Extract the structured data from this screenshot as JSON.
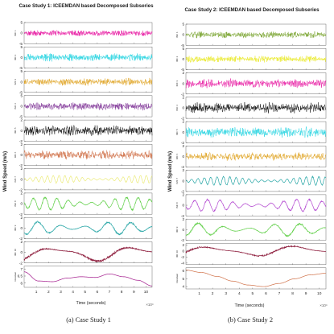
{
  "chart_data": [
    {
      "type": "line",
      "title": "Case Study 1: ICEEMDAN based Decomposed Subseries",
      "xlabel": "Time (seconds)",
      "ylabel": "Wind Speed (m/s)",
      "x_ticks": [
        "1",
        "2",
        "3",
        "4",
        "5",
        "6",
        "7",
        "8",
        "9",
        "10"
      ],
      "x_exponent": "×10⁴",
      "xlim": [
        0,
        105000
      ],
      "series": [
        {
          "name": "IMF 1",
          "color": "#e6109e",
          "y_ticks": [
            "5",
            "0",
            "-5"
          ],
          "ylim": [
            -5,
            5
          ],
          "freq": 260,
          "amp": 1.6
        },
        {
          "name": "IMF 2",
          "color": "#1fd2e0",
          "y_ticks": [
            "5",
            "0",
            "-5"
          ],
          "ylim": [
            -5,
            5
          ],
          "freq": 170,
          "amp": 1.7
        },
        {
          "name": "IMF 3",
          "color": "#dfa21e",
          "y_ticks": [
            "5",
            "0",
            "-5"
          ],
          "ylim": [
            -5,
            5
          ],
          "freq": 115,
          "amp": 1.6
        },
        {
          "name": "IMF 4",
          "color": "#7b2d93",
          "y_ticks": [
            "5",
            "0",
            "-5"
          ],
          "ylim": [
            -5,
            5
          ],
          "freq": 80,
          "amp": 1.8
        },
        {
          "name": "IMF 5",
          "color": "#000000",
          "y_ticks": [
            "2",
            "0",
            "-2"
          ],
          "ylim": [
            -2,
            2
          ],
          "freq": 55,
          "amp": 0.9
        },
        {
          "name": "IMF 6",
          "color": "#cf6e45",
          "y_ticks": [
            "2",
            "0",
            "-2"
          ],
          "ylim": [
            -2,
            2
          ],
          "freq": 36,
          "amp": 0.8
        },
        {
          "name": "IMF 7",
          "color": "#ecec7e",
          "y_ticks": [
            "2",
            "0",
            "-2"
          ],
          "ylim": [
            -2,
            2
          ],
          "freq": 22,
          "amp": 0.7
        },
        {
          "name": "IMF 8",
          "color": "#63d04b",
          "y_ticks": [
            "2",
            "0",
            "-2"
          ],
          "ylim": [
            -2,
            2
          ],
          "freq": 11,
          "amp": 1.2
        },
        {
          "name": "IMF 9",
          "color": "#2aa7a7",
          "y_ticks": [
            "2",
            "0",
            "-2"
          ],
          "ylim": [
            -2,
            2
          ],
          "freq": 5.5,
          "amp": 1.2
        },
        {
          "name": "IMF 10",
          "color": "#8c1a3a",
          "y_ticks": [
            "2",
            "0",
            "-2"
          ],
          "ylim": [
            -2,
            2
          ],
          "freq": 1.6,
          "amp": 1.8
        },
        {
          "name": "Residual",
          "color": "#a1168a",
          "y_ticks": [
            "7",
            "6.5",
            "6"
          ],
          "ylim": [
            5.7,
            7.2
          ],
          "trend": [
            6.8,
            6.15,
            6.1,
            6.35,
            6.45,
            6.4,
            6.65,
            6.45,
            6.2,
            5.8
          ]
        }
      ]
    },
    {
      "type": "line",
      "title": "Case Study 2: ICEEMDAN based Decomposed Subseries",
      "xlabel": "Time (seconds)",
      "ylabel": "Wind Speed (m/s)",
      "x_ticks": [
        "1",
        "2",
        "3",
        "4",
        "5",
        "6",
        "7",
        "8",
        "9",
        "10"
      ],
      "x_exponent": "×10⁴",
      "xlim": [
        0,
        105000
      ],
      "series": [
        {
          "name": "IMF 1",
          "color": "#76a12a",
          "y_ticks": [
            "5",
            "0",
            "-5"
          ],
          "ylim": [
            -5,
            5
          ],
          "freq": 260,
          "amp": 1.5
        },
        {
          "name": "IMF 2",
          "color": "#e8e81a",
          "y_ticks": [
            "5",
            "0",
            "-5"
          ],
          "ylim": [
            -5,
            5
          ],
          "freq": 170,
          "amp": 1.5
        },
        {
          "name": "IMF 3",
          "color": "#e6109e",
          "y_ticks": [
            "2",
            "0",
            "-2"
          ],
          "ylim": [
            -2,
            2
          ],
          "freq": 115,
          "amp": 0.8
        },
        {
          "name": "IMF 4",
          "color": "#000000",
          "y_ticks": [
            "2",
            "0",
            "-2"
          ],
          "ylim": [
            -2,
            2
          ],
          "freq": 80,
          "amp": 0.9
        },
        {
          "name": "IMF 5",
          "color": "#1fd2e0",
          "y_ticks": [
            "2",
            "0",
            "-2"
          ],
          "ylim": [
            -2,
            2
          ],
          "freq": 55,
          "amp": 0.9
        },
        {
          "name": "IMF 6",
          "color": "#dfa21e",
          "y_ticks": [
            "2",
            "0",
            "-2"
          ],
          "ylim": [
            -2,
            2
          ],
          "freq": 36,
          "amp": 0.7
        },
        {
          "name": "IMF 7",
          "color": "#2aa7a7",
          "y_ticks": [
            "2",
            "0",
            "-2"
          ],
          "ylim": [
            -2,
            2
          ],
          "freq": 22,
          "amp": 0.8
        },
        {
          "name": "IMF 8",
          "color": "#b44bd1",
          "y_ticks": [
            "2",
            "0",
            "-2"
          ],
          "ylim": [
            -2,
            2
          ],
          "freq": 11,
          "amp": 1.1
        },
        {
          "name": "IMF 9",
          "color": "#63d04b",
          "y_ticks": [
            "2",
            "0",
            "-2"
          ],
          "ylim": [
            -2,
            2
          ],
          "freq": 5.5,
          "amp": 1.2
        },
        {
          "name": "IMF 10",
          "color": "#8c1a3a",
          "y_ticks": [
            "2",
            "0",
            "-2",
            "-4"
          ],
          "ylim": [
            -4.5,
            2.5
          ],
          "freq": 1.6,
          "amp": 2.2
        },
        {
          "name": "Residual",
          "color": "#cf6e45",
          "y_ticks": [
            "6",
            "5",
            "4"
          ],
          "ylim": [
            3.7,
            6.4
          ],
          "trend": [
            6.1,
            5.8,
            5.3,
            4.7,
            4.2,
            4.0,
            4.4,
            5.0,
            5.5,
            5.7
          ]
        }
      ]
    }
  ],
  "captions": [
    "(a) Case Study 1",
    "(b) Case Study 2"
  ]
}
